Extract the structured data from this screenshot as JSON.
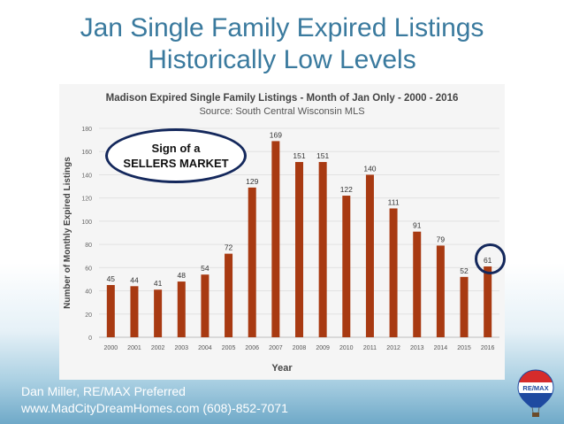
{
  "slide": {
    "title_line1": "Jan Single Family Expired Listings",
    "title_line2": "Historically Low Levels"
  },
  "callout": {
    "line1": "Sign of a",
    "line2": "SELLERS MARKET"
  },
  "footer": {
    "line1": "Dan Miller, RE/MAX Preferred",
    "line2": "www.MadCityDreamHomes.com (608)-852-7071"
  },
  "logo": {
    "text": "RE/MAX"
  },
  "colors": {
    "title": "#3a7a9e",
    "bar": "#a83a12",
    "callout_border": "#14285c"
  },
  "chart_data": {
    "type": "bar",
    "title": "Madison Expired Single Family Listings - Month of Jan Only - 2000 - 2016",
    "subtitle": "Source: South Central Wisconsin MLS",
    "xlabel": "Year",
    "ylabel": "Number of Monthly Expired Listings",
    "ylim": [
      0,
      180
    ],
    "yticks": [
      0,
      20,
      40,
      60,
      80,
      100,
      120,
      140,
      160,
      180
    ],
    "grid": true,
    "categories": [
      "2000",
      "2001",
      "2002",
      "2003",
      "2004",
      "2005",
      "2006",
      "2007",
      "2008",
      "2009",
      "2010",
      "2011",
      "2012",
      "2013",
      "2014",
      "2015",
      "2016"
    ],
    "values": [
      45,
      44,
      41,
      48,
      54,
      72,
      129,
      169,
      151,
      151,
      122,
      140,
      111,
      91,
      79,
      52,
      61
    ],
    "highlight_index": 16
  }
}
